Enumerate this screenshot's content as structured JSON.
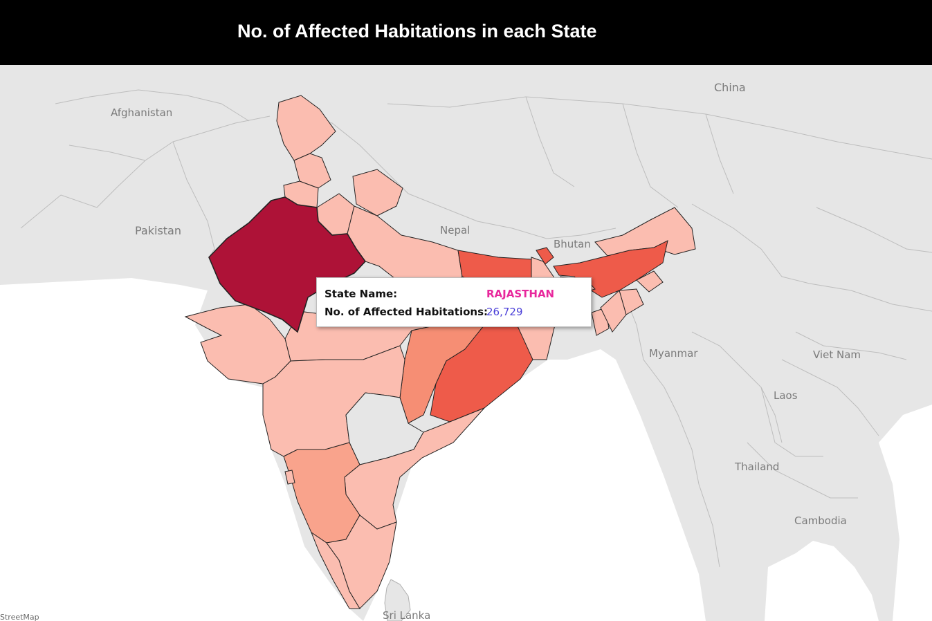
{
  "header": {
    "title": "No. of Affected Habitations in each State"
  },
  "map": {
    "labels": {
      "afghanistan": "Afghanistan",
      "pakistan": "Pakistan",
      "nepal": "Nepal",
      "bhutan": "Bhutan",
      "china": "China",
      "myanmar": "Myanmar",
      "vietnam": "Viet Nam",
      "laos": "Laos",
      "thailand": "Thailand",
      "cambodia": "Cambodia",
      "srilanka": "Sri Lanka"
    },
    "attribution": "StreetMap",
    "colors": {
      "land": "#e6e6e6",
      "sea": "#ffffff",
      "level_low": "#fbbdb0",
      "level_mid": "#f68e74",
      "level_high": "#ee5b4a",
      "level_max": "#ae1237",
      "no_data": "#e6e6e6"
    }
  },
  "tooltip": {
    "state_label": "State Name:",
    "state_value": "RAJASTHAN",
    "count_label": "No. of Affected Habitations:",
    "count_value": "26,729",
    "colors": {
      "state_value": "#e8279c",
      "count_value": "#4a3fd8"
    }
  }
}
